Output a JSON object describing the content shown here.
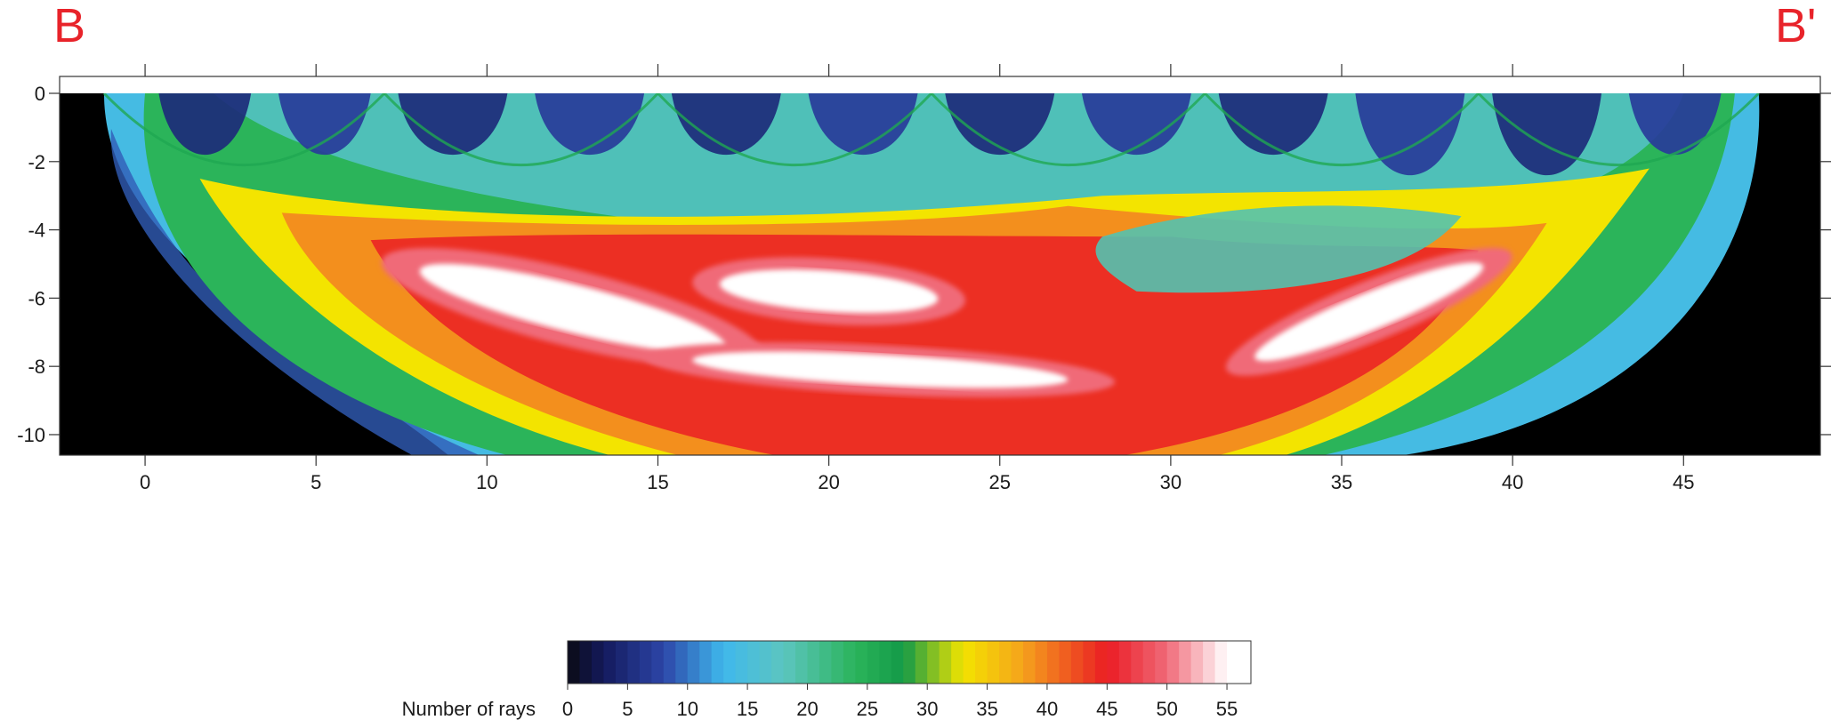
{
  "section": {
    "start_label": "B",
    "end_label": "B'"
  },
  "chart_data": {
    "type": "heatmap",
    "title": "",
    "xlabel": "",
    "ylabel": "",
    "xlim": [
      -2.5,
      49
    ],
    "ylim": [
      -10.6,
      0
    ],
    "x_ticks": [
      0,
      5,
      10,
      15,
      20,
      25,
      30,
      35,
      40,
      45
    ],
    "y_ticks": [
      0,
      -2,
      -4,
      -6,
      -8,
      -10
    ],
    "x_tick_labels": [
      "0",
      "5",
      "10",
      "15",
      "20",
      "25",
      "30",
      "35",
      "40",
      "45"
    ],
    "y_tick_labels": [
      "0",
      "-2",
      "-4",
      "-6",
      "-8",
      "-10"
    ],
    "ray_coverage_extent": {
      "x_min": -1.2,
      "x_max": 47.2,
      "max_depth": -10.6
    },
    "outside_coverage_color": "#000000",
    "colorbar": {
      "label": "Number of rays",
      "min": 0,
      "max": 57,
      "ticks": [
        0,
        5,
        10,
        15,
        20,
        25,
        30,
        35,
        40,
        45,
        50,
        55
      ],
      "tick_labels": [
        "0",
        "5",
        "10",
        "15",
        "20",
        "25",
        "30",
        "35",
        "40",
        "45",
        "50",
        "55"
      ],
      "stops": [
        {
          "value": 0,
          "color": "#0a0a14"
        },
        {
          "value": 3,
          "color": "#131a5c"
        },
        {
          "value": 8,
          "color": "#2d45a8"
        },
        {
          "value": 13,
          "color": "#3fb8ec"
        },
        {
          "value": 18,
          "color": "#5cc5c0"
        },
        {
          "value": 24,
          "color": "#2bb45a"
        },
        {
          "value": 28,
          "color": "#139a48"
        },
        {
          "value": 33,
          "color": "#f3e400"
        },
        {
          "value": 38,
          "color": "#f5a21c"
        },
        {
          "value": 45,
          "color": "#ea1c24"
        },
        {
          "value": 50,
          "color": "#f06a78"
        },
        {
          "value": 55,
          "color": "#ffffff"
        }
      ]
    },
    "coverage_zones": [
      {
        "name": "outer shell",
        "rays": 14,
        "depth_top": 0,
        "depth_bottom": -10.6,
        "x_from": -1.2,
        "x_to": 47.2
      },
      {
        "name": "shallow green arcs",
        "rays": 24,
        "depth_top": 0,
        "depth_bottom": -4,
        "x_from": 0,
        "x_to": 46.5
      },
      {
        "name": "shallow blue cells",
        "rays": 7,
        "depth_top": 0,
        "depth_bottom": -2.6,
        "x_from": 0,
        "x_to": 46
      },
      {
        "name": "yellow band",
        "rays": 33,
        "depth_top": -2.5,
        "depth_bottom": -10.6,
        "x_from": 1.5,
        "x_to": 44
      },
      {
        "name": "red core",
        "rays": 44,
        "depth_top": -4,
        "depth_bottom": -10.6,
        "x_from": 6.5,
        "x_to": 39
      },
      {
        "name": "white maxima",
        "rays": 55,
        "depth_top": -5,
        "depth_bottom": -8.5,
        "x_from": 8,
        "x_to": 38
      }
    ]
  }
}
